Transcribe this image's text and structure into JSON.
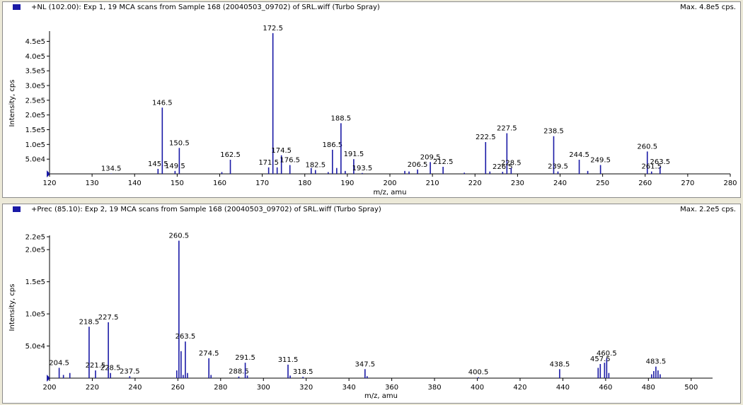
{
  "chart_data": [
    {
      "type": "bar",
      "title": "+NL (102.00): Exp 1, 19 MCA scans from Sample 168 (20040503_09702) of SRL.wiff (Turbo Spray)",
      "max_label": "Max. 4.8e5 cps.",
      "xlabel": "m/z, amu",
      "ylabel": "Intensity, cps",
      "xlim": [
        120,
        280
      ],
      "ylim": [
        0,
        480000
      ],
      "xticks": [
        120,
        130,
        140,
        150,
        160,
        170,
        180,
        190,
        200,
        210,
        220,
        230,
        240,
        250,
        260,
        270,
        280
      ],
      "yticks": [
        {
          "v": 50000,
          "label": "5.0e4"
        },
        {
          "v": 100000,
          "label": "1.0e5"
        },
        {
          "v": 150000,
          "label": "1.5e5"
        },
        {
          "v": 200000,
          "label": "2.0e5"
        },
        {
          "v": 250000,
          "label": "2.5e5"
        },
        {
          "v": 300000,
          "label": "3.0e5"
        },
        {
          "v": 350000,
          "label": "3.5e5"
        },
        {
          "v": 400000,
          "label": "4.0e5"
        },
        {
          "v": 450000,
          "label": "4.5e5"
        }
      ],
      "peaks": [
        {
          "x": 134.5,
          "y": 1500,
          "label": "134.5"
        },
        {
          "x": 145.5,
          "y": 17000,
          "label": "145.5"
        },
        {
          "x": 146.5,
          "y": 225000,
          "label": "146.5"
        },
        {
          "x": 149.5,
          "y": 10000,
          "label": "149.5"
        },
        {
          "x": 150.5,
          "y": 88000,
          "label": "150.5"
        },
        {
          "x": 160.5,
          "y": 6000
        },
        {
          "x": 162.5,
          "y": 48000,
          "label": "162.5"
        },
        {
          "x": 171.5,
          "y": 22000,
          "label": "171.5"
        },
        {
          "x": 172.5,
          "y": 478000,
          "label": "172.5"
        },
        {
          "x": 173.5,
          "y": 22000
        },
        {
          "x": 174.5,
          "y": 63000,
          "label": "174.5"
        },
        {
          "x": 176.5,
          "y": 30000,
          "label": "176.5"
        },
        {
          "x": 181.5,
          "y": 20000
        },
        {
          "x": 182.5,
          "y": 13000,
          "label": "182.5"
        },
        {
          "x": 185.5,
          "y": 6000
        },
        {
          "x": 186.5,
          "y": 82000,
          "label": "186.5"
        },
        {
          "x": 187.5,
          "y": 20000
        },
        {
          "x": 188.5,
          "y": 172000,
          "label": "188.5"
        },
        {
          "x": 189.5,
          "y": 10000
        },
        {
          "x": 191.5,
          "y": 50000,
          "label": "191.5"
        },
        {
          "x": 193.5,
          "y": 3000,
          "label": "193.5"
        },
        {
          "x": 203.5,
          "y": 10000
        },
        {
          "x": 204.5,
          "y": 8000
        },
        {
          "x": 206.5,
          "y": 15000,
          "label": "206.5"
        },
        {
          "x": 209.5,
          "y": 40000,
          "label": "209.5"
        },
        {
          "x": 212.5,
          "y": 24000,
          "label": "212.5"
        },
        {
          "x": 217.5,
          "y": 4000
        },
        {
          "x": 222.5,
          "y": 108000,
          "label": "222.5"
        },
        {
          "x": 223.5,
          "y": 8000
        },
        {
          "x": 226.5,
          "y": 7000,
          "label": "226.5"
        },
        {
          "x": 227.5,
          "y": 138000,
          "label": "227.5"
        },
        {
          "x": 228.5,
          "y": 20000,
          "label": "228.5"
        },
        {
          "x": 238.5,
          "y": 128000,
          "label": "238.5"
        },
        {
          "x": 239.5,
          "y": 8000,
          "label": "239.5"
        },
        {
          "x": 244.5,
          "y": 48000,
          "label": "244.5"
        },
        {
          "x": 246.5,
          "y": 10000
        },
        {
          "x": 249.5,
          "y": 30000,
          "label": "249.5"
        },
        {
          "x": 260.5,
          "y": 76000,
          "label": "260.5"
        },
        {
          "x": 261.5,
          "y": 8000,
          "label": "261.5"
        },
        {
          "x": 263.5,
          "y": 24000,
          "label": "263.5"
        }
      ]
    },
    {
      "type": "bar",
      "title": "+Prec (85.10): Exp 2, 19 MCA scans from Sample 168 (20040503_09702) of SRL.wiff (Turbo Spray)",
      "max_label": "Max. 2.2e5 cps.",
      "xlabel": "m/z, amu",
      "ylabel": "Intensity, cps",
      "xlim": [
        200,
        510
      ],
      "ylim": [
        0,
        220000
      ],
      "xticks": [
        200,
        220,
        240,
        260,
        280,
        300,
        320,
        340,
        360,
        380,
        400,
        420,
        440,
        460,
        480,
        500
      ],
      "yticks": [
        {
          "v": 50000,
          "label": "5.0e4"
        },
        {
          "v": 100000,
          "label": "1.0e5"
        },
        {
          "v": 150000,
          "label": "1.5e5"
        },
        {
          "v": 200000,
          "label": "2.0e5"
        },
        {
          "v": 220000,
          "label": "2.2e5"
        }
      ],
      "peaks": [
        {
          "x": 204.5,
          "y": 16000,
          "label": "204.5"
        },
        {
          "x": 206.5,
          "y": 5000
        },
        {
          "x": 209.5,
          "y": 8000
        },
        {
          "x": 218.5,
          "y": 80000,
          "label": "218.5"
        },
        {
          "x": 221.5,
          "y": 12000,
          "label": "221.5"
        },
        {
          "x": 227.5,
          "y": 87000,
          "label": "227.5"
        },
        {
          "x": 228.5,
          "y": 8000,
          "label": "228.5"
        },
        {
          "x": 237.5,
          "y": 3000,
          "label": "237.5"
        },
        {
          "x": 259.5,
          "y": 12000
        },
        {
          "x": 260.5,
          "y": 214000,
          "label": "260.5"
        },
        {
          "x": 261.5,
          "y": 42000
        },
        {
          "x": 262.5,
          "y": 5000
        },
        {
          "x": 263.5,
          "y": 57000,
          "label": "263.5"
        },
        {
          "x": 264.5,
          "y": 8000
        },
        {
          "x": 274.5,
          "y": 31000,
          "label": "274.5"
        },
        {
          "x": 275.5,
          "y": 5000
        },
        {
          "x": 288.5,
          "y": 2500,
          "label": "288.5"
        },
        {
          "x": 291.5,
          "y": 24000,
          "label": "291.5"
        },
        {
          "x": 292.5,
          "y": 4000
        },
        {
          "x": 311.5,
          "y": 21000,
          "label": "311.5"
        },
        {
          "x": 312.5,
          "y": 4000
        },
        {
          "x": 318.5,
          "y": 2000,
          "label": "318.5"
        },
        {
          "x": 347.5,
          "y": 14000,
          "label": "347.5"
        },
        {
          "x": 348.5,
          "y": 3000
        },
        {
          "x": 400.5,
          "y": 1500,
          "label": "400.5"
        },
        {
          "x": 438.5,
          "y": 14000,
          "label": "438.5"
        },
        {
          "x": 456.5,
          "y": 16000
        },
        {
          "x": 457.5,
          "y": 22000,
          "label": "457.5"
        },
        {
          "x": 459.5,
          "y": 24000
        },
        {
          "x": 460.5,
          "y": 31000,
          "label": "460.5"
        },
        {
          "x": 461.5,
          "y": 8000
        },
        {
          "x": 481.5,
          "y": 6000
        },
        {
          "x": 482.5,
          "y": 11000
        },
        {
          "x": 483.5,
          "y": 18000,
          "label": "483.5"
        },
        {
          "x": 484.5,
          "y": 12000
        },
        {
          "x": 485.5,
          "y": 6000
        }
      ]
    }
  ]
}
